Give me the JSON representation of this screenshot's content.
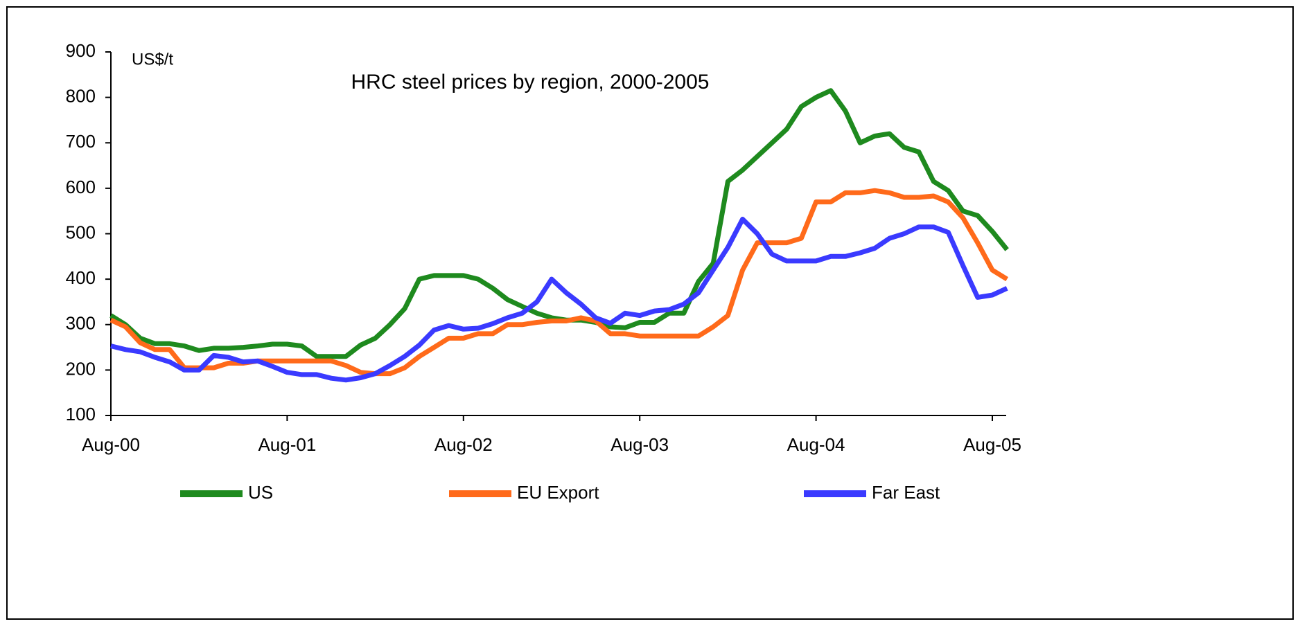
{
  "chart_data": {
    "type": "line",
    "title": "HRC steel prices by region, 2000-2005",
    "y_label": "US$/t",
    "categories": [
      "Aug-00",
      null,
      null,
      null,
      null,
      null,
      null,
      null,
      null,
      null,
      null,
      null,
      "Aug-01",
      null,
      null,
      null,
      null,
      null,
      null,
      null,
      null,
      null,
      null,
      null,
      "Aug-02",
      null,
      null,
      null,
      null,
      null,
      null,
      null,
      null,
      null,
      null,
      null,
      "Aug-03",
      null,
      null,
      null,
      null,
      null,
      null,
      null,
      null,
      null,
      null,
      null,
      "Aug-04",
      null,
      null,
      null,
      null,
      null,
      null,
      null,
      null,
      null,
      null,
      null,
      "Aug-05",
      null
    ],
    "series": [
      {
        "name": "US",
        "color": "#1e8a1e",
        "values": [
          320,
          300,
          270,
          258,
          258,
          253,
          243,
          248,
          248,
          250,
          253,
          257,
          257,
          253,
          230,
          230,
          230,
          255,
          270,
          300,
          335,
          400,
          408,
          408,
          408,
          400,
          380,
          355,
          340,
          325,
          315,
          310,
          310,
          305,
          295,
          293,
          305,
          305,
          325,
          325,
          395,
          435,
          615,
          640,
          670,
          700,
          730,
          780,
          800,
          815,
          770,
          700,
          715,
          720,
          690,
          680,
          615,
          595,
          550,
          540,
          505,
          465
        ]
      },
      {
        "name": "EU Export",
        "color": "#ff6a1a",
        "values": [
          310,
          295,
          260,
          245,
          245,
          205,
          205,
          205,
          215,
          215,
          220,
          220,
          220,
          220,
          220,
          220,
          210,
          195,
          192,
          192,
          205,
          230,
          250,
          270,
          270,
          280,
          280,
          300,
          300,
          305,
          308,
          308,
          315,
          308,
          280,
          280,
          275,
          275,
          275,
          275,
          275,
          295,
          320,
          420,
          480,
          480,
          480,
          490,
          570,
          570,
          590,
          590,
          595,
          590,
          580,
          580,
          583,
          570,
          535,
          480,
          420,
          400
        ]
      },
      {
        "name": "Far East",
        "color": "#3a3aff",
        "values": [
          253,
          245,
          240,
          228,
          218,
          200,
          200,
          232,
          228,
          218,
          220,
          208,
          195,
          190,
          190,
          182,
          178,
          183,
          192,
          210,
          230,
          255,
          288,
          298,
          290,
          292,
          302,
          315,
          325,
          350,
          400,
          370,
          345,
          315,
          303,
          325,
          320,
          330,
          333,
          345,
          370,
          420,
          470,
          532,
          500,
          455,
          440,
          440,
          440,
          450,
          450,
          458,
          468,
          490,
          500,
          515,
          515,
          503,
          430,
          360,
          365,
          380
        ]
      }
    ],
    "ylim": [
      100,
      900
    ],
    "yticks": [
      100,
      200,
      300,
      400,
      500,
      600,
      700,
      800,
      900
    ],
    "legend": "bottom"
  }
}
